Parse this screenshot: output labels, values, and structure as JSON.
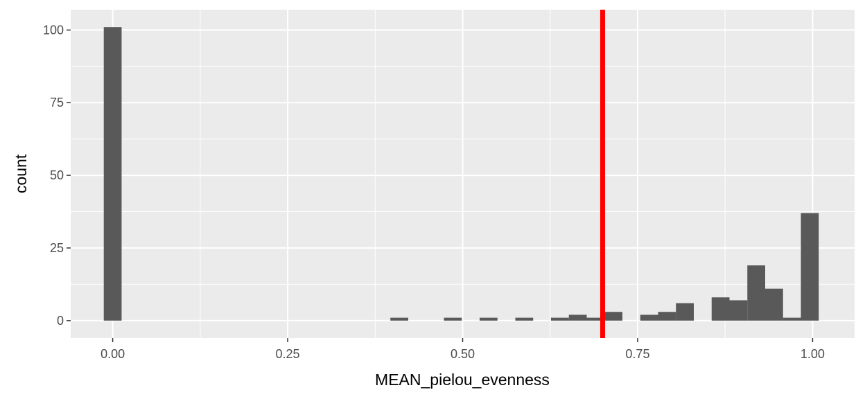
{
  "chart_data": {
    "type": "bar",
    "title": "",
    "xlabel": "MEAN_pielou_evenness",
    "ylabel": "count",
    "xlim": [
      -0.06,
      1.06
    ],
    "ylim": [
      -6,
      107
    ],
    "grid": true,
    "x_ticks": [
      0.0,
      0.25,
      0.5,
      0.75,
      1.0
    ],
    "x_tick_labels": [
      "0.00",
      "0.25",
      "0.50",
      "0.75",
      "1.00"
    ],
    "y_ticks": [
      0,
      25,
      50,
      75,
      100
    ],
    "y_tick_labels": [
      "0",
      "25",
      "50",
      "75",
      "100"
    ],
    "bin_width": 0.0255,
    "bins": [
      {
        "x": 0.0,
        "count": 101
      },
      {
        "x": 0.4095,
        "count": 1
      },
      {
        "x": 0.486,
        "count": 1
      },
      {
        "x": 0.537,
        "count": 1
      },
      {
        "x": 0.588,
        "count": 1
      },
      {
        "x": 0.639,
        "count": 1
      },
      {
        "x": 0.6645,
        "count": 2
      },
      {
        "x": 0.69,
        "count": 1
      },
      {
        "x": 0.7155,
        "count": 3
      },
      {
        "x": 0.7665,
        "count": 2
      },
      {
        "x": 0.792,
        "count": 3
      },
      {
        "x": 0.8175,
        "count": 6
      },
      {
        "x": 0.8685,
        "count": 8
      },
      {
        "x": 0.894,
        "count": 7
      },
      {
        "x": 0.9195,
        "count": 19
      },
      {
        "x": 0.945,
        "count": 11
      },
      {
        "x": 0.9705,
        "count": 1
      },
      {
        "x": 0.996,
        "count": 37
      }
    ],
    "bar_color": "#595959",
    "vline": {
      "x": 0.7,
      "color": "#ff0000"
    },
    "panel_color": "#ebebeb",
    "grid_color": "#ffffff"
  }
}
